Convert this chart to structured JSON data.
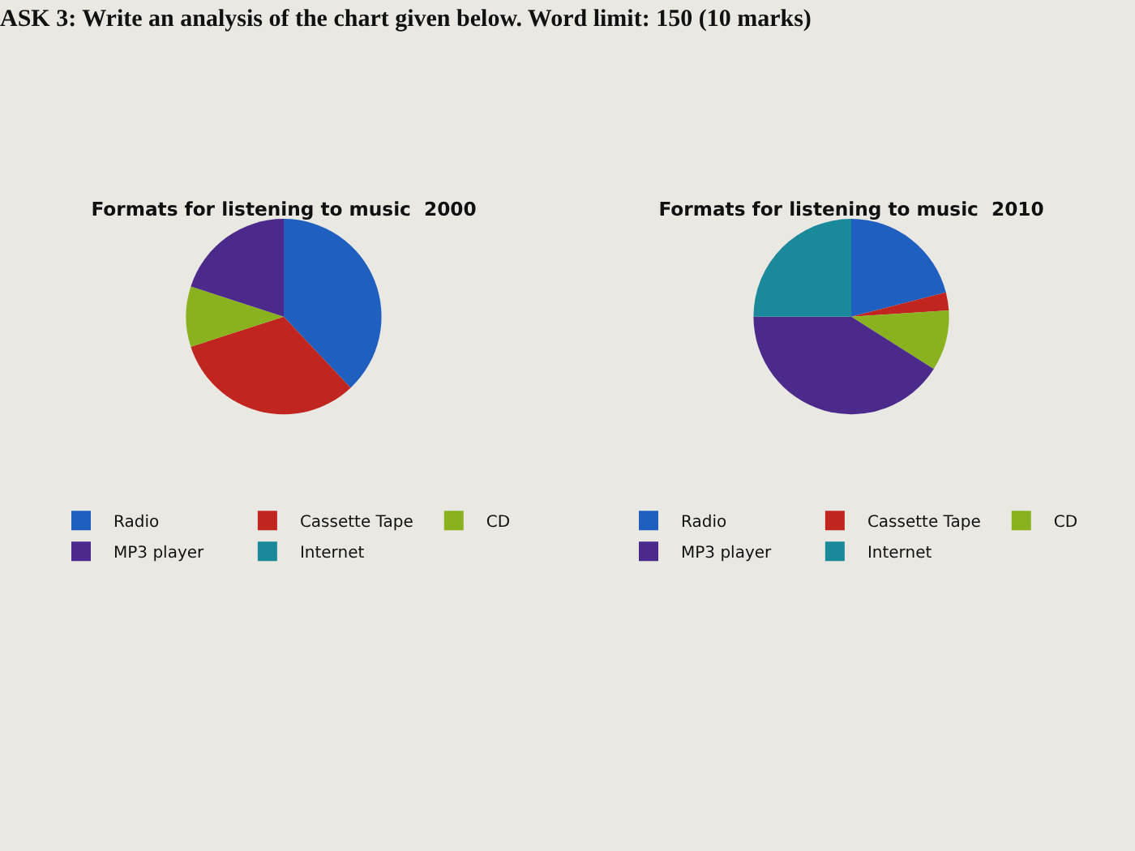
{
  "chart_data": [
    {
      "type": "pie",
      "title": "Formats for listening to music  2000",
      "annotations": [
        "ASK 3: Write an analysis of the chart given below. Word limit: 150 (10 marks)"
      ],
      "categories": [
        "Radio",
        "Cassette Tape",
        "CD",
        "MP3 player",
        "Internet"
      ],
      "values": [
        38,
        32,
        10,
        20,
        0
      ],
      "colors": [
        "#1f5fbf",
        "#c0261f",
        "#8ab21f",
        "#4b2a8c",
        "#1a8a9a"
      ],
      "legend": "bottom"
    },
    {
      "type": "pie",
      "title": "Formats for listening to music  2010",
      "categories": [
        "Radio",
        "Cassette Tape",
        "CD",
        "MP3 player",
        "Internet"
      ],
      "values": [
        21,
        3,
        10,
        41,
        25
      ],
      "colors": [
        "#1f5fbf",
        "#c0261f",
        "#8ab21f",
        "#4b2a8c",
        "#1a8a9a"
      ],
      "legend": "bottom"
    }
  ]
}
